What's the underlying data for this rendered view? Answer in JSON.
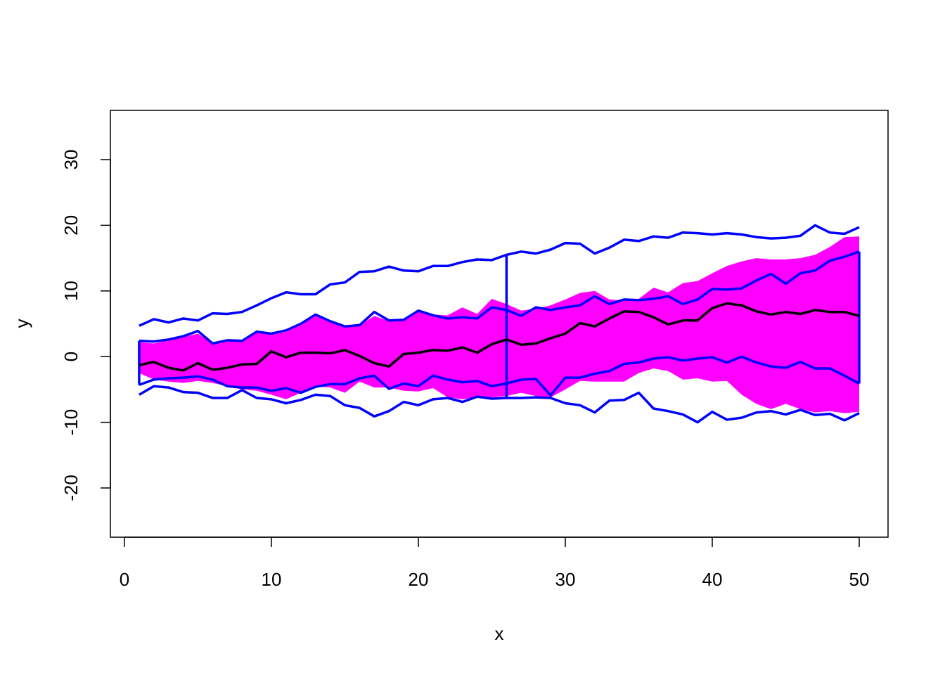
{
  "chart_data": {
    "type": "line",
    "title": "",
    "xlabel": "x",
    "ylabel": "y",
    "xlim": [
      0,
      50
    ],
    "ylim": [
      -27,
      37
    ],
    "x_ticks": [
      0,
      10,
      20,
      30,
      40,
      50
    ],
    "y_ticks": [
      -20,
      -10,
      0,
      10,
      20,
      30
    ],
    "x_tick_labels": [
      "0",
      "10",
      "20",
      "30",
      "40",
      "50"
    ],
    "y_tick_labels": [
      "-20",
      "-10",
      "0",
      "10",
      "20",
      "30"
    ],
    "grid": false,
    "legend": "none",
    "x": [
      1,
      2,
      3,
      4,
      5,
      6,
      7,
      8,
      9,
      10,
      11,
      12,
      13,
      14,
      15,
      16,
      17,
      18,
      19,
      20,
      21,
      22,
      23,
      24,
      25,
      26,
      27,
      28,
      29,
      30,
      31,
      32,
      33,
      34,
      35,
      36,
      37,
      38,
      39,
      40,
      41,
      42,
      43,
      44,
      45,
      46,
      47,
      48,
      49,
      50
    ],
    "band": {
      "color": "#ff00ff",
      "upper": [
        2.2,
        2.0,
        2.5,
        3.0,
        3.5,
        2.0,
        2.3,
        2.5,
        3.7,
        3.3,
        3.8,
        4.8,
        6.2,
        5.5,
        4.7,
        4.8,
        6.2,
        5.4,
        5.7,
        6.8,
        6.4,
        6.3,
        7.5,
        6.5,
        8.8,
        8.0,
        7.0,
        7.3,
        7.8,
        8.7,
        9.7,
        10.0,
        8.7,
        8.5,
        8.8,
        10.5,
        9.8,
        11.2,
        11.5,
        12.7,
        13.8,
        14.5,
        15.0,
        14.8,
        14.8,
        15.0,
        15.5,
        16.7,
        18.2,
        18.3
      ],
      "lower": [
        -2.5,
        -3.5,
        -3.8,
        -4.0,
        -3.7,
        -4.0,
        -4.5,
        -5.0,
        -5.2,
        -5.8,
        -6.5,
        -5.5,
        -4.5,
        -4.7,
        -5.5,
        -3.8,
        -4.7,
        -4.7,
        -5.2,
        -5.3,
        -4.8,
        -6.2,
        -6.5,
        -6.2,
        -6.2,
        -6.0,
        -5.5,
        -6.0,
        -6.2,
        -5.0,
        -3.7,
        -3.8,
        -3.8,
        -3.8,
        -2.5,
        -1.8,
        -2.2,
        -3.5,
        -3.3,
        -3.8,
        -3.7,
        -5.8,
        -7.2,
        -8.0,
        -7.2,
        -8.0,
        -8.5,
        -8.3,
        -8.6,
        -8.4
      ]
    },
    "series": [
      {
        "color": "#0000ff",
        "values": [
          4.7,
          5.7,
          5.2,
          5.8,
          5.5,
          6.6,
          6.5,
          6.8,
          7.8,
          8.9,
          9.8,
          9.5,
          9.5,
          11.0,
          11.3,
          12.9,
          13.0,
          13.7,
          13.1,
          13.0,
          13.8,
          13.8,
          14.4,
          14.8,
          14.7,
          15.5,
          16.0,
          15.7,
          16.3,
          17.3,
          17.2,
          15.7,
          16.6,
          17.8,
          17.6,
          18.3,
          18.1,
          18.9,
          18.8,
          18.6,
          18.8,
          18.6,
          18.2,
          18.0,
          18.1,
          18.4,
          20.0,
          18.9,
          18.7,
          19.7
        ]
      },
      {
        "color": "#0000ff",
        "values": [
          2.4,
          2.3,
          2.6,
          3.1,
          3.9,
          2.0,
          2.5,
          2.4,
          3.8,
          3.5,
          4.0,
          5.0,
          6.4,
          5.4,
          4.6,
          4.8,
          6.8,
          5.5,
          5.6,
          7.0,
          6.3,
          5.8,
          6.0,
          5.8,
          7.5,
          7.1,
          6.2,
          7.5,
          7.1,
          7.5,
          7.8,
          9.2,
          8.0,
          8.7,
          8.6,
          8.8,
          9.2,
          8.0,
          8.7,
          10.3,
          10.2,
          10.4,
          11.6,
          12.6,
          11.1,
          12.7,
          13.1,
          14.6,
          15.2,
          16.0
        ]
      },
      {
        "color": "#000000",
        "values": [
          -1.3,
          -0.8,
          -1.7,
          -2.1,
          -1.0,
          -2.0,
          -1.7,
          -1.2,
          -1.1,
          0.8,
          -0.1,
          0.6,
          0.6,
          0.5,
          1.0,
          0.1,
          -1.0,
          -1.5,
          0.4,
          0.6,
          1.0,
          0.9,
          1.4,
          0.6,
          1.9,
          2.6,
          1.8,
          2.0,
          2.8,
          3.5,
          5.1,
          4.6,
          5.8,
          6.9,
          6.8,
          6.0,
          4.9,
          5.5,
          5.5,
          7.4,
          8.1,
          7.8,
          6.9,
          6.4,
          6.8,
          6.5,
          7.1,
          6.8,
          6.8,
          6.2
        ]
      },
      {
        "color": "#0000ff",
        "values": [
          -4.3,
          -3.5,
          -3.3,
          -3.2,
          -3.0,
          -3.5,
          -4.5,
          -4.7,
          -4.7,
          -5.2,
          -4.8,
          -5.5,
          -4.6,
          -4.2,
          -4.2,
          -3.3,
          -2.9,
          -4.9,
          -4.1,
          -4.5,
          -2.9,
          -3.5,
          -3.9,
          -3.7,
          -4.5,
          -4.1,
          -3.5,
          -3.4,
          -5.9,
          -3.2,
          -3.2,
          -2.6,
          -2.2,
          -1.1,
          -0.9,
          -0.3,
          -0.1,
          -0.6,
          -0.3,
          -0.1,
          -0.9,
          0.0,
          -0.9,
          -1.5,
          -1.7,
          -0.8,
          -1.8,
          -1.8,
          -2.9,
          -4.1
        ]
      },
      {
        "color": "#0000ff",
        "values": [
          -5.8,
          -4.5,
          -4.7,
          -5.4,
          -5.5,
          -6.3,
          -6.3,
          -5.1,
          -6.3,
          -6.5,
          -7.1,
          -6.6,
          -5.8,
          -6.0,
          -7.4,
          -7.8,
          -9.1,
          -8.3,
          -6.9,
          -7.4,
          -6.5,
          -6.3,
          -6.9,
          -6.1,
          -6.4,
          -6.3,
          -6.3,
          -6.2,
          -6.3,
          -7.1,
          -7.4,
          -8.5,
          -6.7,
          -6.6,
          -5.5,
          -7.9,
          -8.3,
          -8.8,
          -10.0,
          -8.4,
          -9.6,
          -9.3,
          -8.5,
          -8.3,
          -8.8,
          -8.1,
          -8.9,
          -8.7,
          -9.7,
          -8.6
        ]
      }
    ],
    "vertical_segments": [
      {
        "color": "#0000ff",
        "x": 1,
        "from": -4.3,
        "to": 2.4
      },
      {
        "color": "#0000ff",
        "x": 26,
        "from": -6.3,
        "to": 15.5
      },
      {
        "color": "#0000ff",
        "x": 50,
        "from": -4.1,
        "to": 16.0
      }
    ]
  }
}
